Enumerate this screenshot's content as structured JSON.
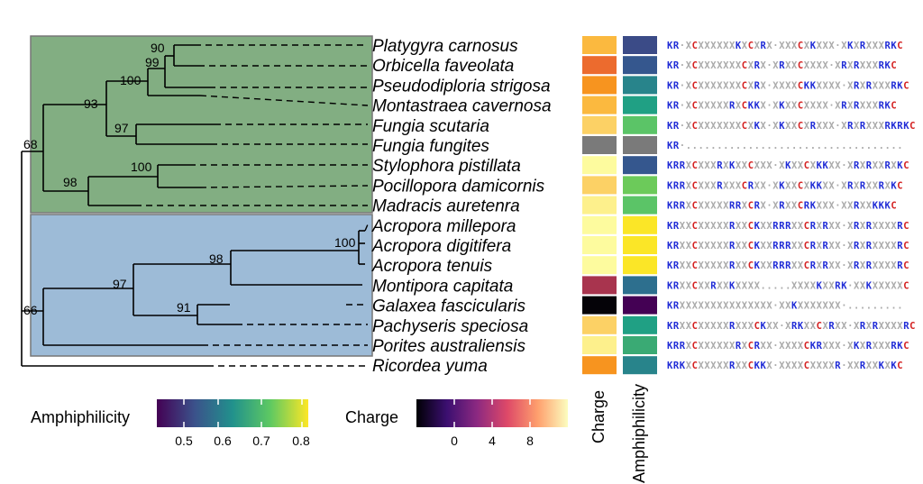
{
  "clades": [
    {
      "name": "clade-green",
      "color": "#82ae82"
    },
    {
      "name": "clade-blue",
      "color": "#9dbbd7"
    }
  ],
  "taxa": [
    {
      "name": "Platygyra carnosus",
      "charge": "#fbb93f",
      "amph": "#3b4b87",
      "seq": "KR XCXXXXXXKXCXRX XXXCXKXXX XKXRXXXRKC"
    },
    {
      "name": "Orbicella faveolata",
      "charge": "#ec6b2e",
      "amph": "#35578e",
      "seq": "KR XCXXXXXXXCXRX XRXXCXXXX XRXRXXXRKC"
    },
    {
      "name": "Pseudodiploria strigosa",
      "charge": "#f7941f",
      "amph": "#28848b",
      "seq": "KR XCXXXXXXXCXRX XXXXCKKXXXX XRXRXXXRKC"
    },
    {
      "name": "Montastraea cavernosa",
      "charge": "#fbb93f",
      "amph": "#20a084",
      "seq": "KR XCXXXXXRXCKKX XKXXCXXXX XRXRXXXRKC"
    },
    {
      "name": "Fungia scutaria",
      "charge": "#fcd165",
      "amph": "#5bc467",
      "seq": "KR XCXXXXXXXCXKX XKXXCXRXXX XRXRXXXRKRKC"
    },
    {
      "name": "Fungia fungites",
      "charge": "#7a7a7a",
      "amph": "#7a7a7a",
      "seq": "KR ..................................."
    },
    {
      "name": "Stylophora pistillata",
      "charge": "#fdfb9e",
      "amph": "#35578e",
      "seq": "KRRXCXXXRXKXXCXXX XKXXCXKKXX XRXRXXRXKC"
    },
    {
      "name": "Pocillopora damicornis",
      "charge": "#fcd165",
      "amph": "#6cca5a",
      "seq": "KRRXCXXXRXXXCRXX XKXXCXKKXX XRXRXXRXKC"
    },
    {
      "name": "Madracis auretenra",
      "charge": "#fdf08c",
      "amph": "#5bc467",
      "seq": "KRRXCXXXXXRRXCRX XRXXCRKXXX XXRXXKKKC"
    },
    {
      "name": "Acropora millepora",
      "charge": "#fdfb9e",
      "amph": "#fbe627",
      "seq": "KRXXCXXXXXRXXCKXXRRRXXCRXRXX XRXRXXXXRC"
    },
    {
      "name": "Acropora digitifera",
      "charge": "#fdfb9e",
      "amph": "#fbe627",
      "seq": "KRXXCXXXXXRXXCKXXRRRXXCRXRXX XRXRXXXXRC"
    },
    {
      "name": "Acropora tenuis",
      "charge": "#fdfb9e",
      "amph": "#fbe627",
      "seq": "KRXXCXXXXXRXXCKXXRRRXXCRXRXX XRXRXXXXRC"
    },
    {
      "name": "Montipora capitata",
      "charge": "#a8344e",
      "amph": "#2d6f8e",
      "seq": "KRXXCXXRXXKXXXX.....XXXXKXXRK XXKXXXXXC"
    },
    {
      "name": "Galaxea fascicularis",
      "charge": "#050308",
      "amph": "#440154",
      "seq": "KRXXXXXXXXXXXXXXX XXKXXXXXXX ........."
    },
    {
      "name": "Pachyseris speciosa",
      "charge": "#fcd165",
      "amph": "#20a084",
      "seq": "KRXXCXXXXXRXXXCKXX XRKXXCXRXX XRXRXXXXRC"
    },
    {
      "name": "Porites australiensis",
      "charge": "#fdf08c",
      "amph": "#3aaa74",
      "seq": "KRRXCXXXXXXRXCRXX XXXXCKRXXX XKXRXXXRKC"
    },
    {
      "name": "Ricordea yuma",
      "charge": "#f7941f",
      "amph": "#28848b",
      "seq": "KRKXCXXXXXRXXCKKX XXXXCXXXXR XXRXXKXKC"
    }
  ],
  "bootstraps": [
    "90",
    "99",
    "100",
    "93",
    "97",
    "68",
    "100",
    "98",
    "100",
    "98",
    "97",
    "91",
    "66"
  ],
  "columns": {
    "charge": "Charge",
    "amph": "Amphiphilicity"
  },
  "legend_amph": {
    "title": "Amphiphilicity",
    "ticks": [
      "0.5",
      "0.6",
      "0.7",
      "0.8"
    ],
    "colors": [
      "#440154",
      "#3b528b",
      "#21918c",
      "#5ec962",
      "#fde725"
    ]
  },
  "legend_charge": {
    "title": "Charge",
    "ticks": [
      "0",
      "4",
      "8"
    ],
    "colors": [
      "#000004",
      "#3b0f70",
      "#8c2981",
      "#de4968",
      "#fe9f6d",
      "#fcfdbf"
    ]
  },
  "seq_colors": {
    "K": "#1f2bd6",
    "R": "#1f2bd6",
    "C": "#d42020",
    "X": "#aaaaaa",
    ".": "#aaaaaa",
    " ": "#aaaaaa"
  }
}
